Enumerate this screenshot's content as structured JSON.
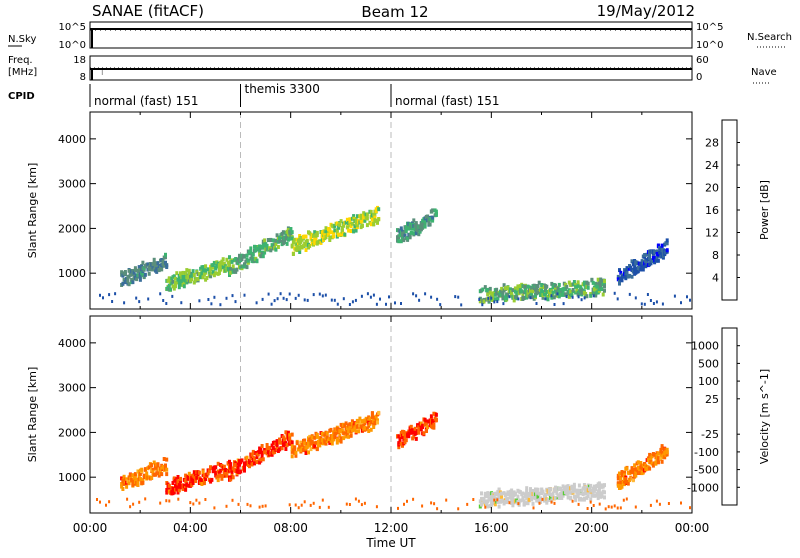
{
  "header": {
    "station": "SANAE (fitACF)",
    "beam": "Beam 12",
    "date": "19/May/2012"
  },
  "top_panels": {
    "nsky_label": "N.Sky",
    "nsky_ticks": [
      "10^5",
      "10^0"
    ],
    "nsearch_label": "N.Search",
    "nsearch_ticks": [
      "10^5",
      "10^0"
    ],
    "freq_label_1": "Freq.",
    "freq_label_2": "[MHz]",
    "freq_ticks": [
      "18",
      "8"
    ],
    "nave_label": "Nave",
    "nave_ticks": [
      "60",
      "0"
    ],
    "cpid_label": "CPID",
    "cpid_segments": [
      {
        "name": "normal (fast) 151",
        "start": 0,
        "end": 6
      },
      {
        "name": "themis 3300",
        "start": 6,
        "end": 12
      },
      {
        "name": "normal (fast) 151",
        "start": 12,
        "end": 24
      }
    ]
  },
  "colors": {
    "power": [
      "#0000ff",
      "#1c4fa8",
      "#3a6e9b",
      "#5b8f7b",
      "#3cb371",
      "#9acd32",
      "#ffd700",
      "#ffa500",
      "#ff6600",
      "#ff0000"
    ],
    "velocity": [
      "#ff0000",
      "#ff6600",
      "#ff9900",
      "#ffbb33",
      "#cccccc",
      "#cccccc",
      "#55cc33",
      "#2e8b57",
      "#1c4fa8",
      "#0000ff"
    ]
  },
  "chart_data": [
    {
      "type": "heatmap",
      "title": "",
      "xlabel": "",
      "ylabel": "Slant Range [km]",
      "xlim": [
        0,
        24
      ],
      "ylim": [
        200,
        4600
      ],
      "yticks": [
        1000,
        2000,
        3000,
        4000
      ],
      "colorbar_label": "Power [dB]",
      "colorbar_ticks": [
        "4",
        "8",
        "12",
        "16",
        "20",
        "24",
        "28"
      ],
      "colorbar_range": [
        0,
        32
      ],
      "bands": [
        {
          "start": 1.2,
          "end": 3.0,
          "range_start": 850,
          "range_end": 1250,
          "value": 10
        },
        {
          "start": 3.0,
          "end": 5.5,
          "range_start": 750,
          "range_end": 1200,
          "value": 16
        },
        {
          "start": 5.5,
          "end": 8.0,
          "range_start": 1100,
          "range_end": 1900,
          "value": 14
        },
        {
          "start": 8.0,
          "end": 11.5,
          "range_start": 1600,
          "range_end": 2300,
          "value": 18
        },
        {
          "start": 12.2,
          "end": 13.8,
          "range_start": 1800,
          "range_end": 2300,
          "value": 12
        },
        {
          "start": 15.5,
          "end": 20.5,
          "range_start": 500,
          "range_end": 700,
          "value": 14
        },
        {
          "start": 21.0,
          "end": 23.0,
          "range_start": 900,
          "range_end": 1600,
          "value": 6
        }
      ]
    },
    {
      "type": "heatmap",
      "title": "",
      "xlabel": "Time UT",
      "ylabel": "Slant Range [km]",
      "xlim": [
        0,
        24
      ],
      "ylim": [
        200,
        4600
      ],
      "yticks": [
        1000,
        2000,
        3000,
        4000
      ],
      "xticks": [
        "00:00",
        "04:00",
        "08:00",
        "12:00",
        "16:00",
        "20:00",
        "00:00"
      ],
      "colorbar_label": "Velocity [m s^-1]",
      "colorbar_ticks": [
        "-1000",
        "-500",
        "-100",
        "-25",
        "25",
        "100",
        "500",
        "1000"
      ],
      "colorbar_range": [
        0,
        10
      ],
      "bands": [
        {
          "start": 1.2,
          "end": 3.0,
          "range_start": 850,
          "range_end": 1250,
          "value": 2
        },
        {
          "start": 3.0,
          "end": 5.5,
          "range_start": 750,
          "range_end": 1200,
          "value": 1
        },
        {
          "start": 5.5,
          "end": 8.0,
          "range_start": 1100,
          "range_end": 1900,
          "value": 1
        },
        {
          "start": 8.0,
          "end": 11.5,
          "range_start": 1600,
          "range_end": 2300,
          "value": 2
        },
        {
          "start": 12.2,
          "end": 13.8,
          "range_start": 1800,
          "range_end": 2300,
          "value": 1
        },
        {
          "start": 15.5,
          "end": 20.5,
          "range_start": 500,
          "range_end": 700,
          "value": 5
        },
        {
          "start": 21.0,
          "end": 23.0,
          "range_start": 900,
          "range_end": 1600,
          "value": 2
        }
      ]
    }
  ]
}
